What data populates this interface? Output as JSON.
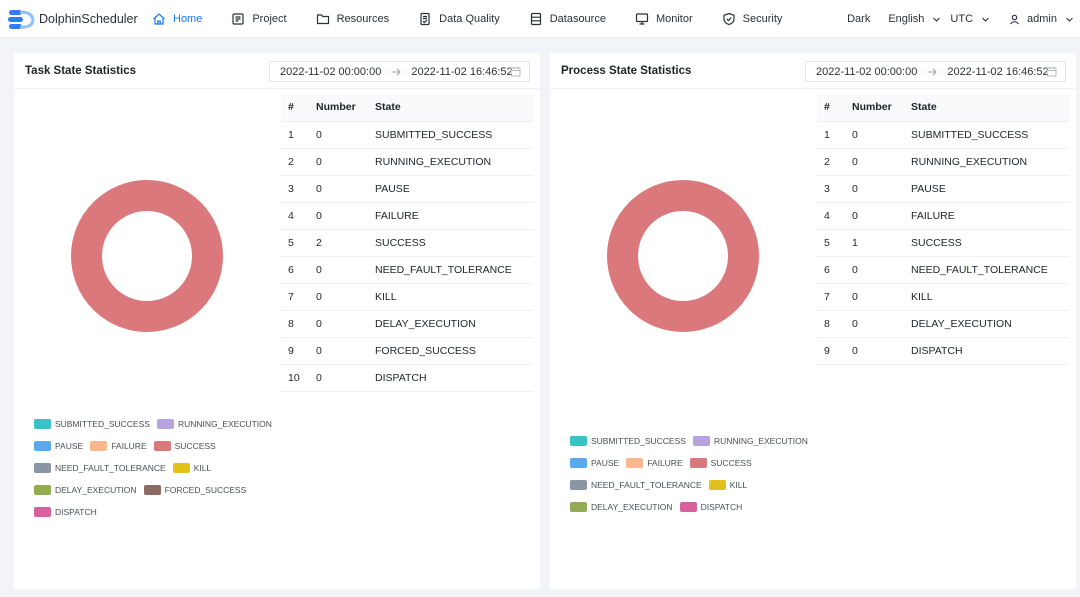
{
  "app": {
    "name": "DolphinScheduler"
  },
  "nav": [
    {
      "key": "home",
      "label": "Home",
      "icon": "home-icon",
      "active": true
    },
    {
      "key": "project",
      "label": "Project",
      "icon": "project-icon",
      "active": false
    },
    {
      "key": "resources",
      "label": "Resources",
      "icon": "folder-icon",
      "active": false
    },
    {
      "key": "data-quality",
      "label": "Data Quality",
      "icon": "document-check-icon",
      "active": false
    },
    {
      "key": "datasource",
      "label": "Datasource",
      "icon": "database-icon",
      "active": false
    },
    {
      "key": "monitor",
      "label": "Monitor",
      "icon": "monitor-icon",
      "active": false
    },
    {
      "key": "security",
      "label": "Security",
      "icon": "shield-icon",
      "active": false
    }
  ],
  "header_right": {
    "theme": "Dark",
    "language": "English",
    "timezone": "UTC",
    "user": "admin"
  },
  "colors": {
    "accent": "#1677ff",
    "SUBMITTED_SUCCESS": "#3bc2c6",
    "RUNNING_EXECUTION": "#b9a2e0",
    "PAUSE": "#5aa9ee",
    "FAILURE": "#f8b78c",
    "SUCCESS": "#da787b",
    "NEED_FAULT_TOLERANCE": "#8b95a6",
    "KILL": "#e3c11b",
    "DELAY_EXECUTION": "#93ab53",
    "FORCED_SUCCESS": "#8c6b63",
    "DISPATCH": "#d8609f"
  },
  "task_panel": {
    "title": "Task State Statistics",
    "date_start": "2022-11-02 00:00:00",
    "date_end": "2022-11-02 16:46:52",
    "table_headers": {
      "idx": "#",
      "number": "Number",
      "state": "State"
    },
    "rows": [
      {
        "idx": "1",
        "number": "0",
        "state": "SUBMITTED_SUCCESS"
      },
      {
        "idx": "2",
        "number": "0",
        "state": "RUNNING_EXECUTION"
      },
      {
        "idx": "3",
        "number": "0",
        "state": "PAUSE"
      },
      {
        "idx": "4",
        "number": "0",
        "state": "FAILURE"
      },
      {
        "idx": "5",
        "number": "2",
        "state": "SUCCESS"
      },
      {
        "idx": "6",
        "number": "0",
        "state": "NEED_FAULT_TOLERANCE"
      },
      {
        "idx": "7",
        "number": "0",
        "state": "KILL"
      },
      {
        "idx": "8",
        "number": "0",
        "state": "DELAY_EXECUTION"
      },
      {
        "idx": "9",
        "number": "0",
        "state": "FORCED_SUCCESS"
      },
      {
        "idx": "10",
        "number": "0",
        "state": "DISPATCH"
      }
    ],
    "legend_rows": [
      [
        "SUBMITTED_SUCCESS",
        "RUNNING_EXECUTION"
      ],
      [
        "PAUSE",
        "FAILURE",
        "SUCCESS"
      ],
      [
        "NEED_FAULT_TOLERANCE",
        "KILL"
      ],
      [
        "DELAY_EXECUTION",
        "FORCED_SUCCESS"
      ],
      [
        "DISPATCH"
      ]
    ]
  },
  "process_panel": {
    "title": "Process State Statistics",
    "date_start": "2022-11-02 00:00:00",
    "date_end": "2022-11-02 16:46:52",
    "table_headers": {
      "idx": "#",
      "number": "Number",
      "state": "State"
    },
    "rows": [
      {
        "idx": "1",
        "number": "0",
        "state": "SUBMITTED_SUCCESS"
      },
      {
        "idx": "2",
        "number": "0",
        "state": "RUNNING_EXECUTION"
      },
      {
        "idx": "3",
        "number": "0",
        "state": "PAUSE"
      },
      {
        "idx": "4",
        "number": "0",
        "state": "FAILURE"
      },
      {
        "idx": "5",
        "number": "1",
        "state": "SUCCESS"
      },
      {
        "idx": "6",
        "number": "0",
        "state": "NEED_FAULT_TOLERANCE"
      },
      {
        "idx": "7",
        "number": "0",
        "state": "KILL"
      },
      {
        "idx": "8",
        "number": "0",
        "state": "DELAY_EXECUTION"
      },
      {
        "idx": "9",
        "number": "0",
        "state": "DISPATCH"
      }
    ],
    "legend_rows": [
      [
        "SUBMITTED_SUCCESS",
        "RUNNING_EXECUTION"
      ],
      [
        "PAUSE",
        "FAILURE",
        "SUCCESS"
      ],
      [
        "NEED_FAULT_TOLERANCE",
        "KILL"
      ],
      [
        "DELAY_EXECUTION",
        "DISPATCH"
      ]
    ]
  }
}
